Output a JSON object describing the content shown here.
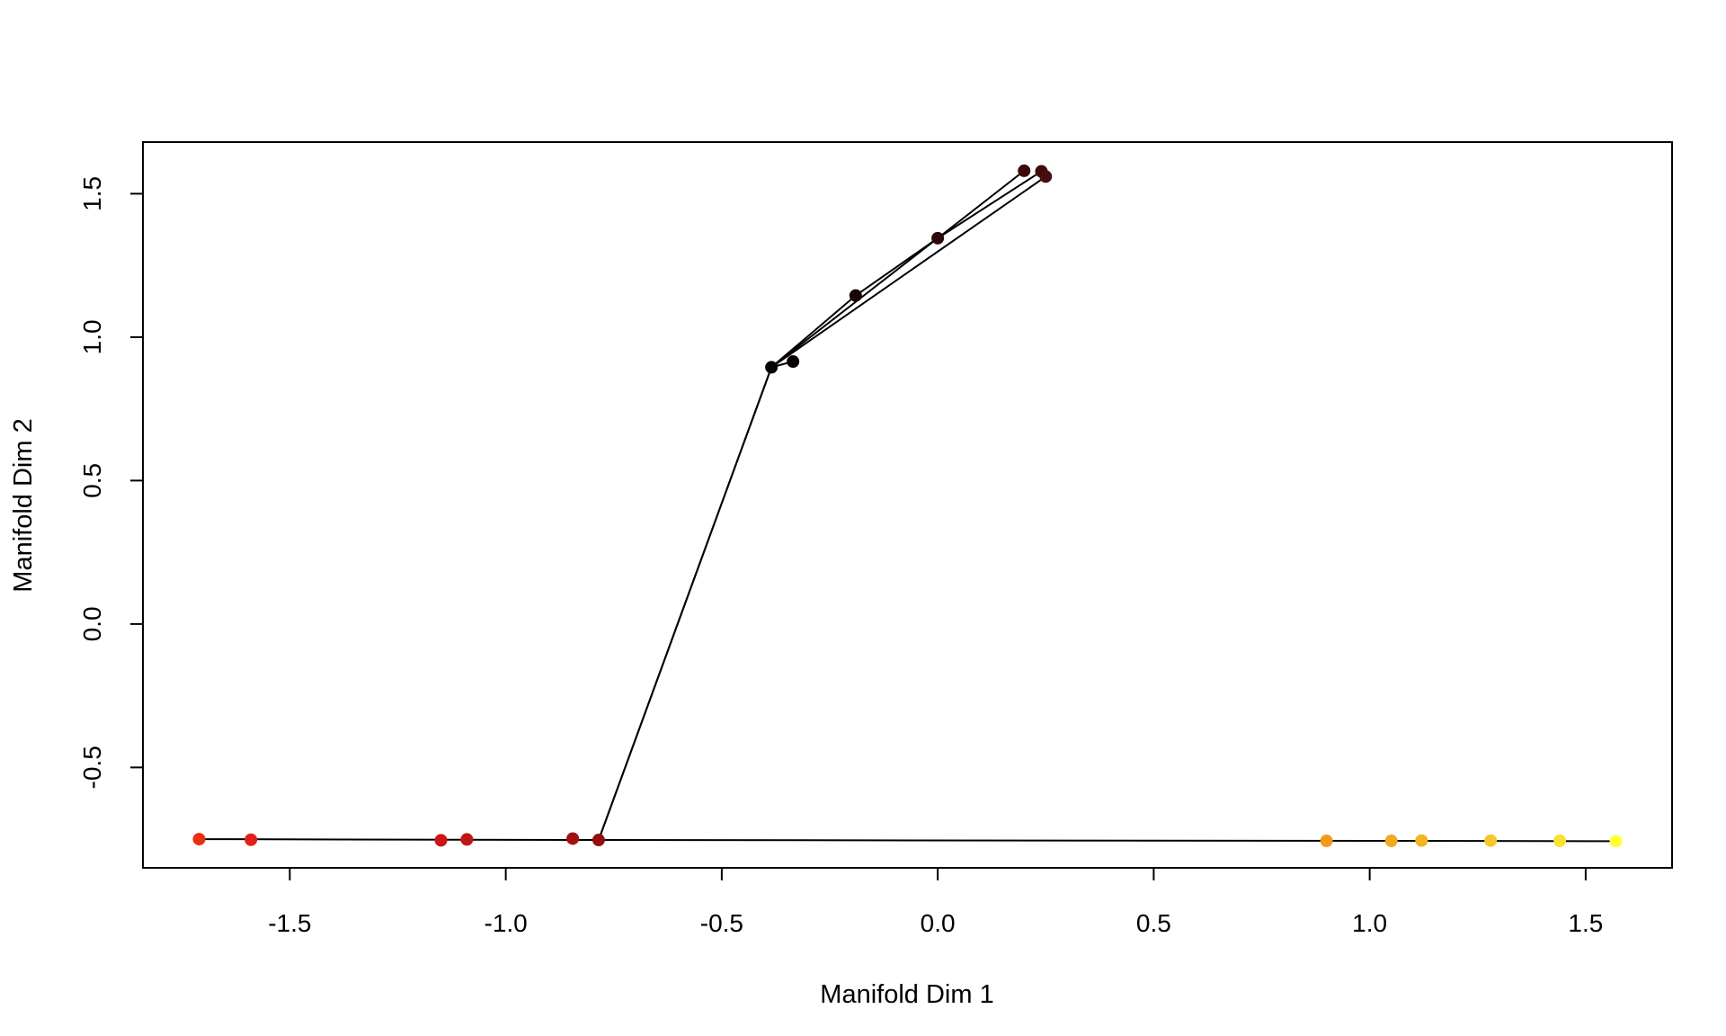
{
  "chart_data": {
    "type": "scatter",
    "title": "",
    "xlabel": "Manifold Dim 1",
    "ylabel": "Manifold Dim 2",
    "xlim": [
      -1.84,
      1.7
    ],
    "ylim": [
      -0.85,
      1.68
    ],
    "x_ticks": [
      -1.5,
      -1.0,
      -0.5,
      0.0,
      0.5,
      1.0,
      1.5
    ],
    "x_tick_labels": [
      "-1.5",
      "-1.0",
      "-0.5",
      "0.0",
      "0.5",
      "1.0",
      "1.5"
    ],
    "y_ticks": [
      -0.5,
      0.0,
      0.5,
      1.0,
      1.5
    ],
    "y_tick_labels": [
      "-0.5",
      "0.0",
      "0.5",
      "1.0",
      "1.5"
    ],
    "grid": false,
    "legend": "none",
    "points": [
      {
        "x": -1.71,
        "y": -0.75,
        "color": "#e8300f"
      },
      {
        "x": -1.59,
        "y": -0.752,
        "color": "#e0201a"
      },
      {
        "x": -1.15,
        "y": -0.754,
        "color": "#cc1515"
      },
      {
        "x": -1.09,
        "y": -0.751,
        "color": "#c01515"
      },
      {
        "x": -0.845,
        "y": -0.748,
        "color": "#a01212"
      },
      {
        "x": -0.785,
        "y": -0.753,
        "color": "#901010"
      },
      {
        "x": -0.385,
        "y": 0.895,
        "color": "#000000"
      },
      {
        "x": -0.335,
        "y": 0.915,
        "color": "#080000"
      },
      {
        "x": -0.19,
        "y": 1.145,
        "color": "#180505"
      },
      {
        "x": 0.0,
        "y": 1.345,
        "color": "#2a0808"
      },
      {
        "x": 0.2,
        "y": 1.58,
        "color": "#3c0a0a"
      },
      {
        "x": 0.24,
        "y": 1.578,
        "color": "#400b0b"
      },
      {
        "x": 0.25,
        "y": 1.56,
        "color": "#4a0d0d"
      },
      {
        "x": 0.9,
        "y": -0.756,
        "color": "#f09a1c"
      },
      {
        "x": 1.05,
        "y": -0.756,
        "color": "#f2a820"
      },
      {
        "x": 1.12,
        "y": -0.755,
        "color": "#f2b424"
      },
      {
        "x": 1.28,
        "y": -0.755,
        "color": "#f5c82a"
      },
      {
        "x": 1.44,
        "y": -0.756,
        "color": "#f8e230"
      },
      {
        "x": 1.57,
        "y": -0.757,
        "color": "#ffff33"
      }
    ],
    "paths": [
      [
        [
          -1.71,
          -0.75
        ],
        [
          -0.785,
          -0.753
        ],
        [
          1.57,
          -0.757
        ]
      ],
      [
        [
          -0.785,
          -0.753
        ],
        [
          -0.385,
          0.895
        ],
        [
          -0.19,
          1.145
        ],
        [
          0.0,
          1.345
        ],
        [
          0.2,
          1.58
        ]
      ],
      [
        [
          -0.785,
          -0.753
        ],
        [
          -0.385,
          0.895
        ],
        [
          0.0,
          1.345
        ],
        [
          0.24,
          1.578
        ]
      ],
      [
        [
          -0.385,
          0.895
        ],
        [
          0.25,
          1.56
        ]
      ],
      [
        [
          -0.385,
          0.895
        ],
        [
          -0.335,
          0.915
        ]
      ]
    ]
  }
}
